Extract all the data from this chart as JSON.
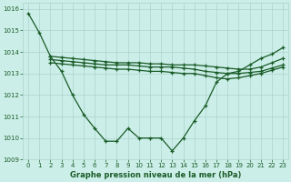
{
  "title": "Graphe pression niveau de la mer (hPa)",
  "bg_color": "#cceee8",
  "grid_color": "#aad4cc",
  "line_color": "#1a5c28",
  "xlim": [
    -0.5,
    23.5
  ],
  "ylim": [
    1009.0,
    1016.3
  ],
  "yticks": [
    1009,
    1010,
    1011,
    1012,
    1013,
    1014,
    1015,
    1016
  ],
  "xticks": [
    0,
    1,
    2,
    3,
    4,
    5,
    6,
    7,
    8,
    9,
    10,
    11,
    12,
    13,
    14,
    15,
    16,
    17,
    18,
    19,
    20,
    21,
    22,
    23
  ],
  "line1_x": [
    0,
    1,
    2,
    3,
    4,
    5,
    6,
    7,
    8,
    9,
    10,
    11,
    12,
    13,
    14,
    15,
    16,
    17,
    18,
    19,
    20,
    21,
    22,
    23
  ],
  "line1_y": [
    1015.8,
    1014.9,
    1013.8,
    1013.1,
    1012.0,
    1011.1,
    1010.45,
    1009.85,
    1009.85,
    1010.45,
    1010.0,
    1010.0,
    1010.0,
    1009.4,
    1010.0,
    1010.8,
    1011.5,
    1012.6,
    1013.0,
    1013.1,
    1013.4,
    1013.7,
    1013.9,
    1014.2
  ],
  "line2_x": [
    2,
    3,
    4,
    5,
    6,
    7,
    8,
    9,
    10,
    11,
    12,
    13,
    14,
    15,
    16,
    17,
    18,
    19,
    20,
    21,
    22,
    23
  ],
  "line2_y": [
    1013.8,
    1013.75,
    1013.7,
    1013.65,
    1013.6,
    1013.55,
    1013.5,
    1013.5,
    1013.5,
    1013.45,
    1013.45,
    1013.4,
    1013.4,
    1013.4,
    1013.35,
    1013.3,
    1013.25,
    1013.2,
    1013.2,
    1013.3,
    1013.5,
    1013.7
  ],
  "line3_x": [
    2,
    3,
    4,
    5,
    6,
    7,
    8,
    9,
    10,
    11,
    12,
    13,
    14,
    15,
    16,
    17,
    18,
    19,
    20,
    21,
    22,
    23
  ],
  "line3_y": [
    1013.65,
    1013.6,
    1013.55,
    1013.5,
    1013.45,
    1013.4,
    1013.4,
    1013.4,
    1013.35,
    1013.3,
    1013.3,
    1013.3,
    1013.25,
    1013.2,
    1013.1,
    1013.05,
    1013.0,
    1013.0,
    1013.05,
    1013.1,
    1013.25,
    1013.4
  ],
  "line4_x": [
    2,
    3,
    4,
    5,
    6,
    7,
    8,
    9,
    10,
    11,
    12,
    13,
    14,
    15,
    16,
    17,
    18,
    19,
    20,
    21,
    22,
    23
  ],
  "line4_y": [
    1013.5,
    1013.45,
    1013.4,
    1013.35,
    1013.3,
    1013.25,
    1013.2,
    1013.2,
    1013.15,
    1013.1,
    1013.1,
    1013.05,
    1013.0,
    1013.0,
    1012.9,
    1012.8,
    1012.75,
    1012.8,
    1012.9,
    1013.0,
    1013.15,
    1013.3
  ]
}
